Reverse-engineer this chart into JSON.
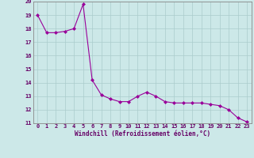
{
  "x": [
    0,
    1,
    2,
    3,
    4,
    5,
    6,
    7,
    8,
    9,
    10,
    11,
    12,
    13,
    14,
    15,
    16,
    17,
    18,
    19,
    20,
    21,
    22,
    23
  ],
  "y": [
    19.0,
    17.7,
    17.7,
    17.8,
    18.0,
    19.8,
    14.2,
    13.1,
    12.8,
    12.6,
    12.6,
    13.0,
    13.3,
    13.0,
    12.6,
    12.5,
    12.5,
    12.5,
    12.5,
    12.4,
    12.3,
    12.0,
    11.4,
    11.1
  ],
  "line_color": "#990099",
  "marker": "D",
  "marker_size": 2,
  "bg_color": "#cce8e8",
  "grid_color": "#aacccc",
  "xlabel": "Windchill (Refroidissement éolien,°C)",
  "xlabel_color": "#660066",
  "tick_color": "#660066",
  "ylim": [
    11,
    20
  ],
  "xlim": [
    -0.5,
    23.5
  ],
  "yticks": [
    11,
    12,
    13,
    14,
    15,
    16,
    17,
    18,
    19,
    20
  ],
  "xticks": [
    0,
    1,
    2,
    3,
    4,
    5,
    6,
    7,
    8,
    9,
    10,
    11,
    12,
    13,
    14,
    15,
    16,
    17,
    18,
    19,
    20,
    21,
    22,
    23
  ],
  "tick_fontsize": 5.0,
  "xlabel_fontsize": 5.5,
  "linewidth": 0.8
}
